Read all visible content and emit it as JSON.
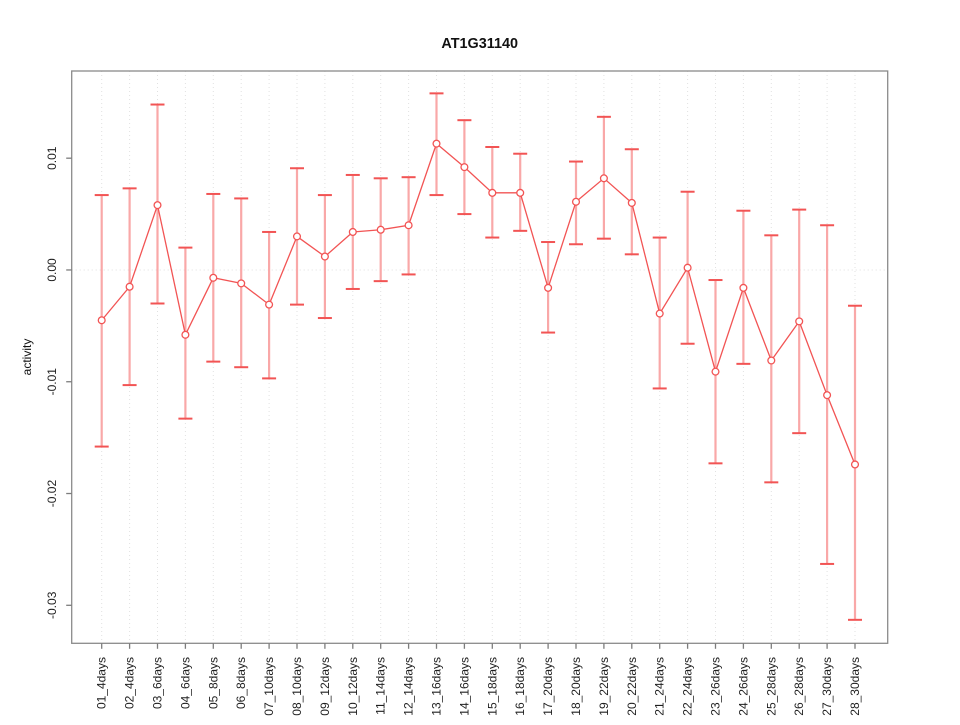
{
  "figure": {
    "background": "#ffffff"
  },
  "chart_data": {
    "type": "line",
    "title": "AT1G31140",
    "xlabel": "",
    "ylabel": "activity",
    "legend": "none",
    "grid": "dotted vertical line at every category; dotted horizontal line at y=0",
    "marker": "open-circle",
    "error_bars": true,
    "categories": [
      "01_4days",
      "02_4days",
      "03_6days",
      "04_6days",
      "05_8days",
      "06_8days",
      "07_10days",
      "08_10days",
      "09_12days",
      "10_12days",
      "11_14days",
      "12_14days",
      "13_16days",
      "14_16days",
      "15_18days",
      "16_18days",
      "17_20days",
      "18_20days",
      "19_22days",
      "20_22days",
      "21_24days",
      "22_24days",
      "23_26days",
      "24_26days",
      "25_28days",
      "26_28days",
      "27_30days",
      "28_30days"
    ],
    "series": [
      {
        "name": "activity",
        "values": [
          -0.0045,
          -0.0015,
          0.0058,
          -0.0058,
          -0.0007,
          -0.0012,
          -0.0031,
          0.003,
          0.0012,
          0.0034,
          0.0036,
          0.004,
          0.0113,
          0.0092,
          0.0069,
          0.0069,
          -0.0016,
          0.0061,
          0.0082,
          0.006,
          -0.0039,
          0.0002,
          -0.0091,
          -0.0016,
          -0.0081,
          -0.0046,
          -0.0112,
          -0.0174
        ]
      }
    ],
    "error_high": [
      0.0067,
      0.0073,
      0.0148,
      0.002,
      0.0068,
      0.0064,
      0.0034,
      0.0091,
      0.0067,
      0.0085,
      0.0082,
      0.0083,
      0.0158,
      0.0134,
      0.011,
      0.0104,
      0.0025,
      0.0097,
      0.0137,
      0.0108,
      0.0029,
      0.007,
      -0.0009,
      0.0053,
      0.0031,
      0.0054,
      0.004,
      -0.0032
    ],
    "error_low": [
      -0.0158,
      -0.0103,
      -0.003,
      -0.0133,
      -0.0082,
      -0.0087,
      -0.0097,
      -0.0031,
      -0.0043,
      -0.0017,
      -0.001,
      -0.0004,
      0.0067,
      0.005,
      0.0029,
      0.0035,
      -0.0056,
      0.0023,
      0.0028,
      0.0014,
      -0.0106,
      -0.0066,
      -0.0173,
      -0.0084,
      -0.019,
      -0.0146,
      -0.0263,
      -0.0313
    ],
    "yticks": [
      {
        "label": "0.01",
        "value": 0.01
      },
      {
        "label": "0.00",
        "value": 0.0
      },
      {
        "label": "-0.01",
        "value": -0.01
      },
      {
        "label": "-0.02",
        "value": -0.02
      },
      {
        "label": "-0.03",
        "value": -0.03
      }
    ],
    "ylim": [
      -0.0334,
      0.0178
    ],
    "colors": {
      "line": "#f25454",
      "point_stroke": "#f25454",
      "point_fill": "#ffffff",
      "error_stem": "#f9a8a8",
      "error_cap": "#f25454",
      "grid": "#e1e1e1",
      "box": "#8a8a8a",
      "tick": "#7d7d7d",
      "text": "#1f1f1f"
    }
  }
}
